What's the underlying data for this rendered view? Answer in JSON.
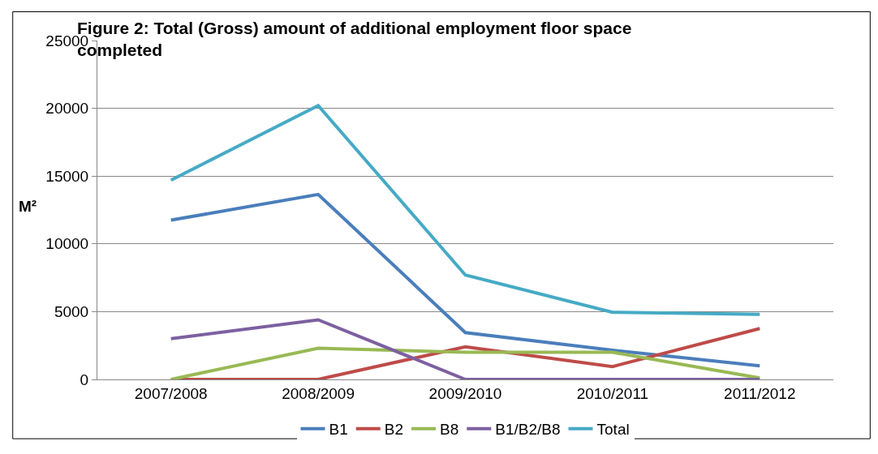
{
  "chart_data": {
    "type": "line",
    "title": "Figure 2: Total (Gross) amount of additional employment floor space completed",
    "ylabel": "M²",
    "categories": [
      "2007/2008",
      "2008/2009",
      "2009/2010",
      "2010/2011",
      "2011/2012"
    ],
    "series": [
      {
        "name": "B1",
        "color": "#4a7ebb",
        "values": [
          11750,
          13650,
          3450,
          2150,
          1000
        ]
      },
      {
        "name": "B2",
        "color": "#be4b48",
        "values": [
          0,
          0,
          2400,
          950,
          3750
        ]
      },
      {
        "name": "B8",
        "color": "#98b954",
        "values": [
          0,
          2300,
          2000,
          2000,
          100
        ]
      },
      {
        "name": "B1/B2/B8",
        "color": "#7d60a0",
        "values": [
          3000,
          4400,
          0,
          0,
          0
        ]
      },
      {
        "name": "Total",
        "color": "#46aac5",
        "values": [
          14700,
          20200,
          7700,
          4950,
          4800
        ]
      }
    ],
    "ylim": [
      0,
      25000
    ],
    "yticks": [
      0,
      5000,
      10000,
      15000,
      20000,
      25000
    ],
    "grid": "y",
    "legend": "bottom",
    "marker": "none",
    "line_style": "solid"
  }
}
